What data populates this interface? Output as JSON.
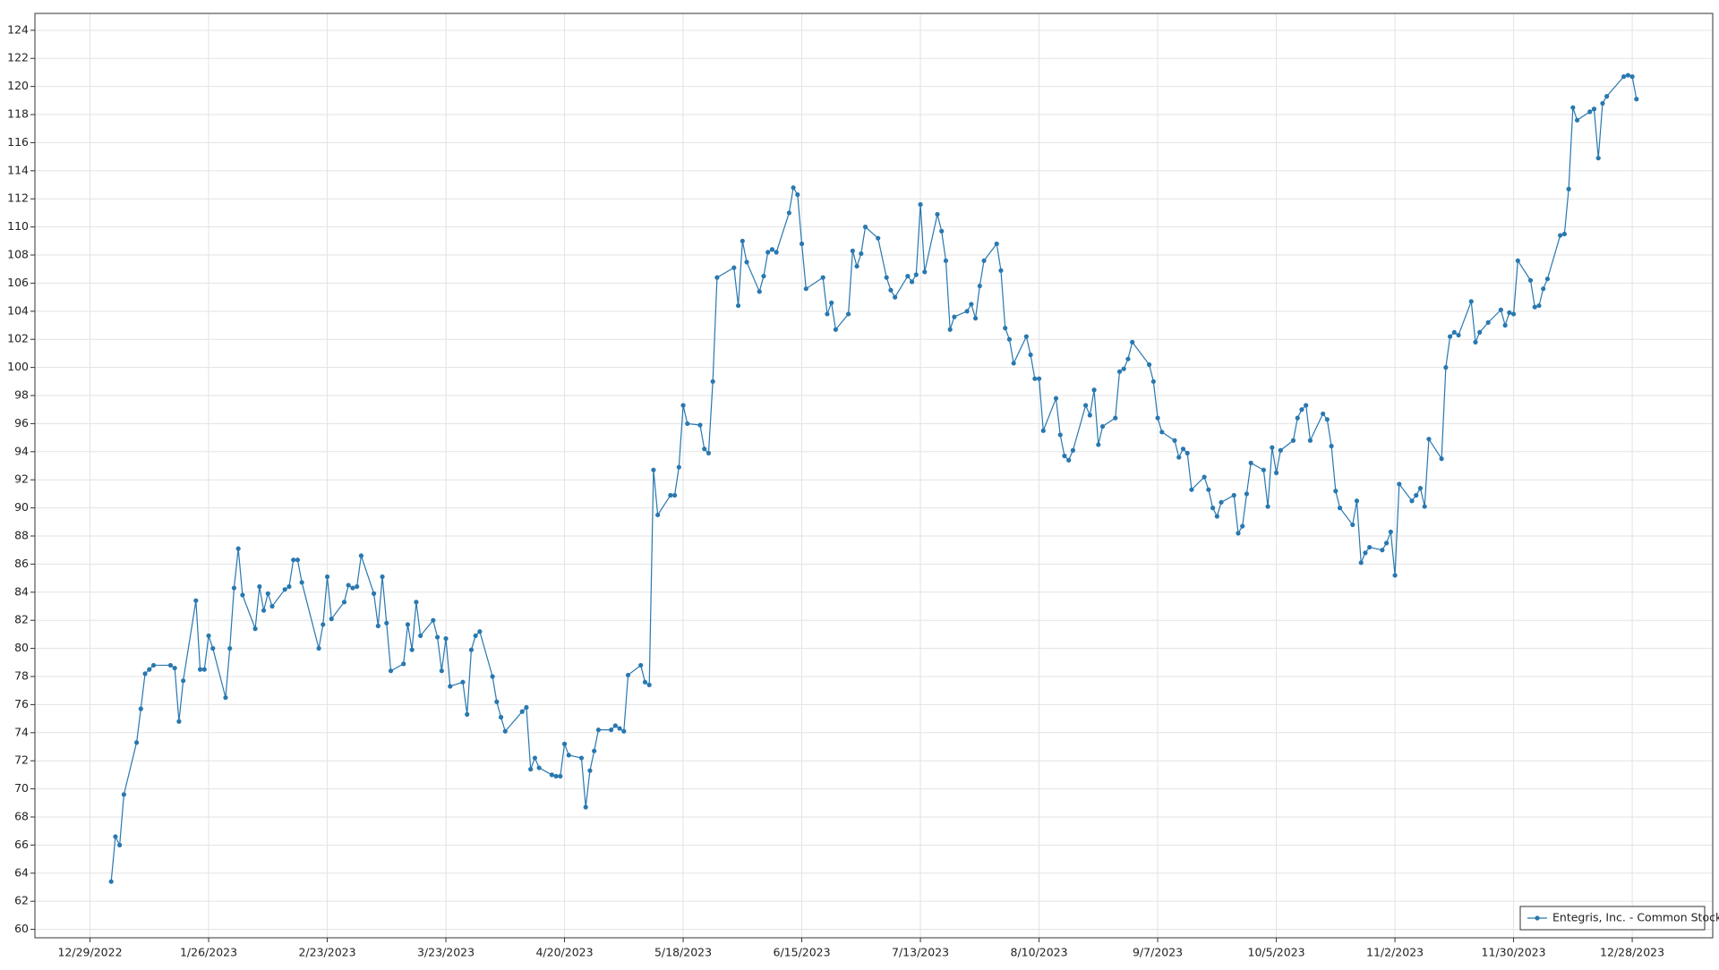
{
  "chart_data": {
    "type": "line",
    "x": [
      "1/3/2023",
      "1/4/2023",
      "1/5/2023",
      "1/6/2023",
      "1/9/2023",
      "1/10/2023",
      "1/11/2023",
      "1/12/2023",
      "1/13/2023",
      "1/17/2023",
      "1/18/2023",
      "1/19/2023",
      "1/20/2023",
      "1/23/2023",
      "1/24/2023",
      "1/25/2023",
      "1/26/2023",
      "1/27/2023",
      "1/30/2023",
      "1/31/2023",
      "2/1/2023",
      "2/2/2023",
      "2/3/2023",
      "2/6/2023",
      "2/7/2023",
      "2/8/2023",
      "2/9/2023",
      "2/10/2023",
      "2/13/2023",
      "2/14/2023",
      "2/15/2023",
      "2/16/2023",
      "2/17/2023",
      "2/21/2023",
      "2/22/2023",
      "2/23/2023",
      "2/24/2023",
      "2/27/2023",
      "2/28/2023",
      "3/1/2023",
      "3/2/2023",
      "3/3/2023",
      "3/6/2023",
      "3/7/2023",
      "3/8/2023",
      "3/9/2023",
      "3/10/2023",
      "3/13/2023",
      "3/14/2023",
      "3/15/2023",
      "3/16/2023",
      "3/17/2023",
      "3/20/2023",
      "3/21/2023",
      "3/22/2023",
      "3/23/2023",
      "3/24/2023",
      "3/27/2023",
      "3/28/2023",
      "3/29/2023",
      "3/30/2023",
      "3/31/2023",
      "4/3/2023",
      "4/4/2023",
      "4/5/2023",
      "4/6/2023",
      "4/10/2023",
      "4/11/2023",
      "4/12/2023",
      "4/13/2023",
      "4/14/2023",
      "4/17/2023",
      "4/18/2023",
      "4/19/2023",
      "4/20/2023",
      "4/21/2023",
      "4/24/2023",
      "4/25/2023",
      "4/26/2023",
      "4/27/2023",
      "4/28/2023",
      "5/1/2023",
      "5/2/2023",
      "5/3/2023",
      "5/4/2023",
      "5/5/2023",
      "5/8/2023",
      "5/9/2023",
      "5/10/2023",
      "5/11/2023",
      "5/12/2023",
      "5/15/2023",
      "5/16/2023",
      "5/17/2023",
      "5/18/2023",
      "5/19/2023",
      "5/22/2023",
      "5/23/2023",
      "5/24/2023",
      "5/25/2023",
      "5/26/2023",
      "5/30/2023",
      "5/31/2023",
      "6/1/2023",
      "6/2/2023",
      "6/5/2023",
      "6/6/2023",
      "6/7/2023",
      "6/8/2023",
      "6/9/2023",
      "6/12/2023",
      "6/13/2023",
      "6/14/2023",
      "6/15/2023",
      "6/16/2023",
      "6/20/2023",
      "6/21/2023",
      "6/22/2023",
      "6/23/2023",
      "6/26/2023",
      "6/27/2023",
      "6/28/2023",
      "6/29/2023",
      "6/30/2023",
      "7/3/2023",
      "7/5/2023",
      "7/6/2023",
      "7/7/2023",
      "7/10/2023",
      "7/11/2023",
      "7/12/2023",
      "7/13/2023",
      "7/14/2023",
      "7/17/2023",
      "7/18/2023",
      "7/19/2023",
      "7/20/2023",
      "7/21/2023",
      "7/24/2023",
      "7/25/2023",
      "7/26/2023",
      "7/27/2023",
      "7/28/2023",
      "7/31/2023",
      "8/1/2023",
      "8/2/2023",
      "8/3/2023",
      "8/4/2023",
      "8/7/2023",
      "8/8/2023",
      "8/9/2023",
      "8/10/2023",
      "8/11/2023",
      "8/14/2023",
      "8/15/2023",
      "8/16/2023",
      "8/17/2023",
      "8/18/2023",
      "8/21/2023",
      "8/22/2023",
      "8/23/2023",
      "8/24/2023",
      "8/25/2023",
      "8/28/2023",
      "8/29/2023",
      "8/30/2023",
      "8/31/2023",
      "9/1/2023",
      "9/5/2023",
      "9/6/2023",
      "9/7/2023",
      "9/8/2023",
      "9/11/2023",
      "9/12/2023",
      "9/13/2023",
      "9/14/2023",
      "9/15/2023",
      "9/18/2023",
      "9/19/2023",
      "9/20/2023",
      "9/21/2023",
      "9/22/2023",
      "9/25/2023",
      "9/26/2023",
      "9/27/2023",
      "9/28/2023",
      "9/29/2023",
      "10/2/2023",
      "10/3/2023",
      "10/4/2023",
      "10/5/2023",
      "10/6/2023",
      "10/9/2023",
      "10/10/2023",
      "10/11/2023",
      "10/12/2023",
      "10/13/2023",
      "10/16/2023",
      "10/17/2023",
      "10/18/2023",
      "10/19/2023",
      "10/20/2023",
      "10/23/2023",
      "10/24/2023",
      "10/25/2023",
      "10/26/2023",
      "10/27/2023",
      "10/30/2023",
      "10/31/2023",
      "11/1/2023",
      "11/2/2023",
      "11/3/2023",
      "11/6/2023",
      "11/7/2023",
      "11/8/2023",
      "11/9/2023",
      "11/10/2023",
      "11/13/2023",
      "11/14/2023",
      "11/15/2023",
      "11/16/2023",
      "11/17/2023",
      "11/20/2023",
      "11/21/2023",
      "11/22/2023",
      "11/24/2023",
      "11/27/2023",
      "11/28/2023",
      "11/29/2023",
      "11/30/2023",
      "12/1/2023",
      "12/4/2023",
      "12/5/2023",
      "12/6/2023",
      "12/7/2023",
      "12/8/2023",
      "12/11/2023",
      "12/12/2023",
      "12/13/2023",
      "12/14/2023",
      "12/15/2023",
      "12/18/2023",
      "12/19/2023",
      "12/20/2023",
      "12/21/2023",
      "12/22/2023",
      "12/26/2023",
      "12/27/2023",
      "12/28/2023",
      "12/29/2023"
    ],
    "series": [
      {
        "name": "Entegris, Inc. - Common Stock",
        "color": "#2878b0",
        "values": [
          63.4,
          66.6,
          66.0,
          69.6,
          73.3,
          75.7,
          78.2,
          78.5,
          78.8,
          78.8,
          78.6,
          74.8,
          77.7,
          83.4,
          78.5,
          78.5,
          80.9,
          80.0,
          76.5,
          80.0,
          84.3,
          87.1,
          83.8,
          81.4,
          84.4,
          82.7,
          83.9,
          83.0,
          84.2,
          84.4,
          86.3,
          86.3,
          84.7,
          80.0,
          81.7,
          85.1,
          82.1,
          83.3,
          84.5,
          84.3,
          84.4,
          86.6,
          83.9,
          81.6,
          85.1,
          81.8,
          78.4,
          78.9,
          81.7,
          79.9,
          83.3,
          80.9,
          82.0,
          80.8,
          78.4,
          80.7,
          77.3,
          77.6,
          75.3,
          79.9,
          80.9,
          81.2,
          78.0,
          76.2,
          75.1,
          74.1,
          75.5,
          75.8,
          71.4,
          72.2,
          71.5,
          71.0,
          70.9,
          70.9,
          73.2,
          72.4,
          72.2,
          68.7,
          71.3,
          72.7,
          74.2,
          74.2,
          74.5,
          74.3,
          74.1,
          78.1,
          78.8,
          77.6,
          77.4,
          92.7,
          89.5,
          90.9,
          90.9,
          92.9,
          97.3,
          96.0,
          95.9,
          94.2,
          93.9,
          99.0,
          106.4,
          107.1,
          104.4,
          109.0,
          107.5,
          105.4,
          106.5,
          108.2,
          108.4,
          108.2,
          111.0,
          112.8,
          112.3,
          108.8,
          105.6,
          106.4,
          103.8,
          104.6,
          102.7,
          103.8,
          108.3,
          107.2,
          108.1,
          110.0,
          109.2,
          106.4,
          105.5,
          105.0,
          106.5,
          106.1,
          106.6,
          111.6,
          106.8,
          110.9,
          109.7,
          107.6,
          102.7,
          103.6,
          104.0,
          104.5,
          103.5,
          105.8,
          107.6,
          108.8,
          106.9,
          102.8,
          102.0,
          100.3,
          102.2,
          100.9,
          99.2,
          99.2,
          95.5,
          97.8,
          95.2,
          93.7,
          93.4,
          94.1,
          97.3,
          96.6,
          98.4,
          94.5,
          95.8,
          96.4,
          99.7,
          99.9,
          100.6,
          101.8,
          100.2,
          99.0,
          96.4,
          95.4,
          94.8,
          93.6,
          94.2,
          93.9,
          91.3,
          92.2,
          91.3,
          90.0,
          89.4,
          90.4,
          90.9,
          88.2,
          88.7,
          91.0,
          93.2,
          92.7,
          90.1,
          94.3,
          92.5,
          94.1,
          94.8,
          96.4,
          97.0,
          97.3,
          94.8,
          96.7,
          96.3,
          94.4,
          91.2,
          90.0,
          88.8,
          90.5,
          86.1,
          86.8,
          87.2,
          87.0,
          87.5,
          88.3,
          85.2,
          91.7,
          90.5,
          90.9,
          91.4,
          90.1,
          94.9,
          93.5,
          100.0,
          102.2,
          102.5,
          102.3,
          104.7,
          101.8,
          102.5,
          103.2,
          104.1,
          103.0,
          103.9,
          103.8,
          107.6,
          106.2,
          104.3,
          104.4,
          105.6,
          106.3,
          109.4,
          109.5,
          112.7,
          118.5,
          117.6,
          118.2,
          118.4,
          114.9,
          118.8,
          119.3,
          120.7,
          120.8,
          120.7,
          119.1
        ]
      }
    ],
    "xlim": [
      "12/16/2022",
      "1/16/2024"
    ],
    "xticks": [
      "12/29/2022",
      "1/26/2023",
      "2/23/2023",
      "3/23/2023",
      "4/20/2023",
      "5/18/2023",
      "6/15/2023",
      "7/13/2023",
      "8/10/2023",
      "9/7/2023",
      "10/5/2023",
      "11/2/2023",
      "11/30/2023",
      "12/28/2023"
    ],
    "ylim": [
      59.4,
      125.2
    ],
    "yticks": [
      60,
      62,
      64,
      66,
      68,
      70,
      72,
      74,
      76,
      78,
      80,
      82,
      84,
      86,
      88,
      90,
      92,
      94,
      96,
      98,
      100,
      102,
      104,
      106,
      108,
      110,
      112,
      114,
      116,
      118,
      120,
      122,
      124
    ],
    "grid": true,
    "legend": "lower right"
  }
}
